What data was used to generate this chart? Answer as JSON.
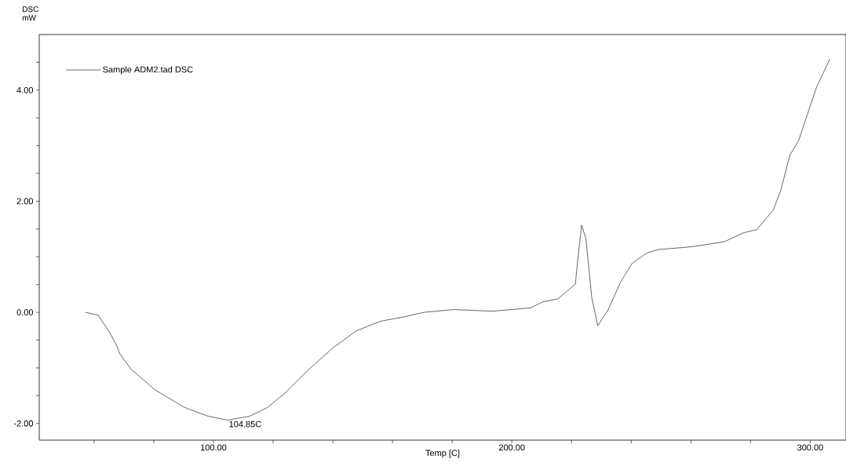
{
  "chart_data": {
    "type": "line",
    "xlabel": "Temp [C]",
    "ylabel": "DSC mW",
    "xlim": [
      41.6,
      312
    ],
    "ylim": [
      -2.3,
      5
    ],
    "xticks": [
      {
        "value": 60,
        "label": null
      },
      {
        "value": 80,
        "label": null
      },
      {
        "value": 100,
        "label": "100.00"
      },
      {
        "value": 120,
        "label": null
      },
      {
        "value": 140,
        "label": null
      },
      {
        "value": 160,
        "label": null
      },
      {
        "value": 180,
        "label": null
      },
      {
        "value": 200,
        "label": "200.00"
      },
      {
        "value": 220,
        "label": null
      },
      {
        "value": 240,
        "label": null
      },
      {
        "value": 260,
        "label": null
      },
      {
        "value": 280,
        "label": null
      },
      {
        "value": 300,
        "label": "300.00"
      }
    ],
    "yticks": [
      {
        "value": -2,
        "label": "-2.00"
      },
      {
        "value": -1.5,
        "label": null
      },
      {
        "value": -1,
        "label": null
      },
      {
        "value": -0.5,
        "label": null
      },
      {
        "value": 0,
        "label": "0.00"
      },
      {
        "value": 0.5,
        "label": null
      },
      {
        "value": 1,
        "label": null
      },
      {
        "value": 1.5,
        "label": null
      },
      {
        "value": 2,
        "label": "2.00"
      },
      {
        "value": 2.5,
        "label": null
      },
      {
        "value": 3,
        "label": null
      },
      {
        "value": 3.5,
        "label": null
      },
      {
        "value": 4,
        "label": "4.00"
      },
      {
        "value": 4.5,
        "label": null
      }
    ],
    "legend": "top left",
    "grid": false,
    "marker": "none",
    "line_style": "solid",
    "annotations": [
      {
        "text": "104.85C",
        "x": 104.85,
        "y": -1.94
      }
    ],
    "series": [
      {
        "name": "Sample  ADM2.tad  DSC",
        "color": "#000000",
        "x": [
          57.1,
          61.3,
          65.3,
          67.9,
          68.3,
          72.3,
          80.3,
          90.2,
          98.2,
          104.7,
          112.1,
          118.2,
          124.2,
          132.1,
          140,
          148,
          156,
          164,
          170.5,
          180.5,
          193.4,
          206.3,
          210.4,
          215.4,
          221.3,
          221.8,
          223.4,
          224.8,
          226.8,
          228.8,
          232.3,
          236.3,
          240.3,
          245.3,
          249.2,
          260.3,
          271.2,
          277.6,
          282.1,
          287.6,
          290.1,
          293.2,
          296.1,
          299.1,
          302.1,
          306.6
        ],
        "values": [
          0,
          -0.05,
          -0.37,
          -0.64,
          -0.72,
          -1.02,
          -1.39,
          -1.71,
          -1.87,
          -1.94,
          -1.87,
          -1.71,
          -1.44,
          -1.02,
          -0.64,
          -0.33,
          -0.16,
          -0.08,
          0,
          0.05,
          0.02,
          0.08,
          0.19,
          0.24,
          0.51,
          0.8,
          1.57,
          1.33,
          0.26,
          -0.24,
          0.05,
          0.53,
          0.88,
          1.07,
          1.13,
          1.18,
          1.27,
          1.43,
          1.49,
          1.84,
          2.19,
          2.83,
          3.09,
          3.57,
          4.05,
          4.56
        ]
      }
    ]
  }
}
